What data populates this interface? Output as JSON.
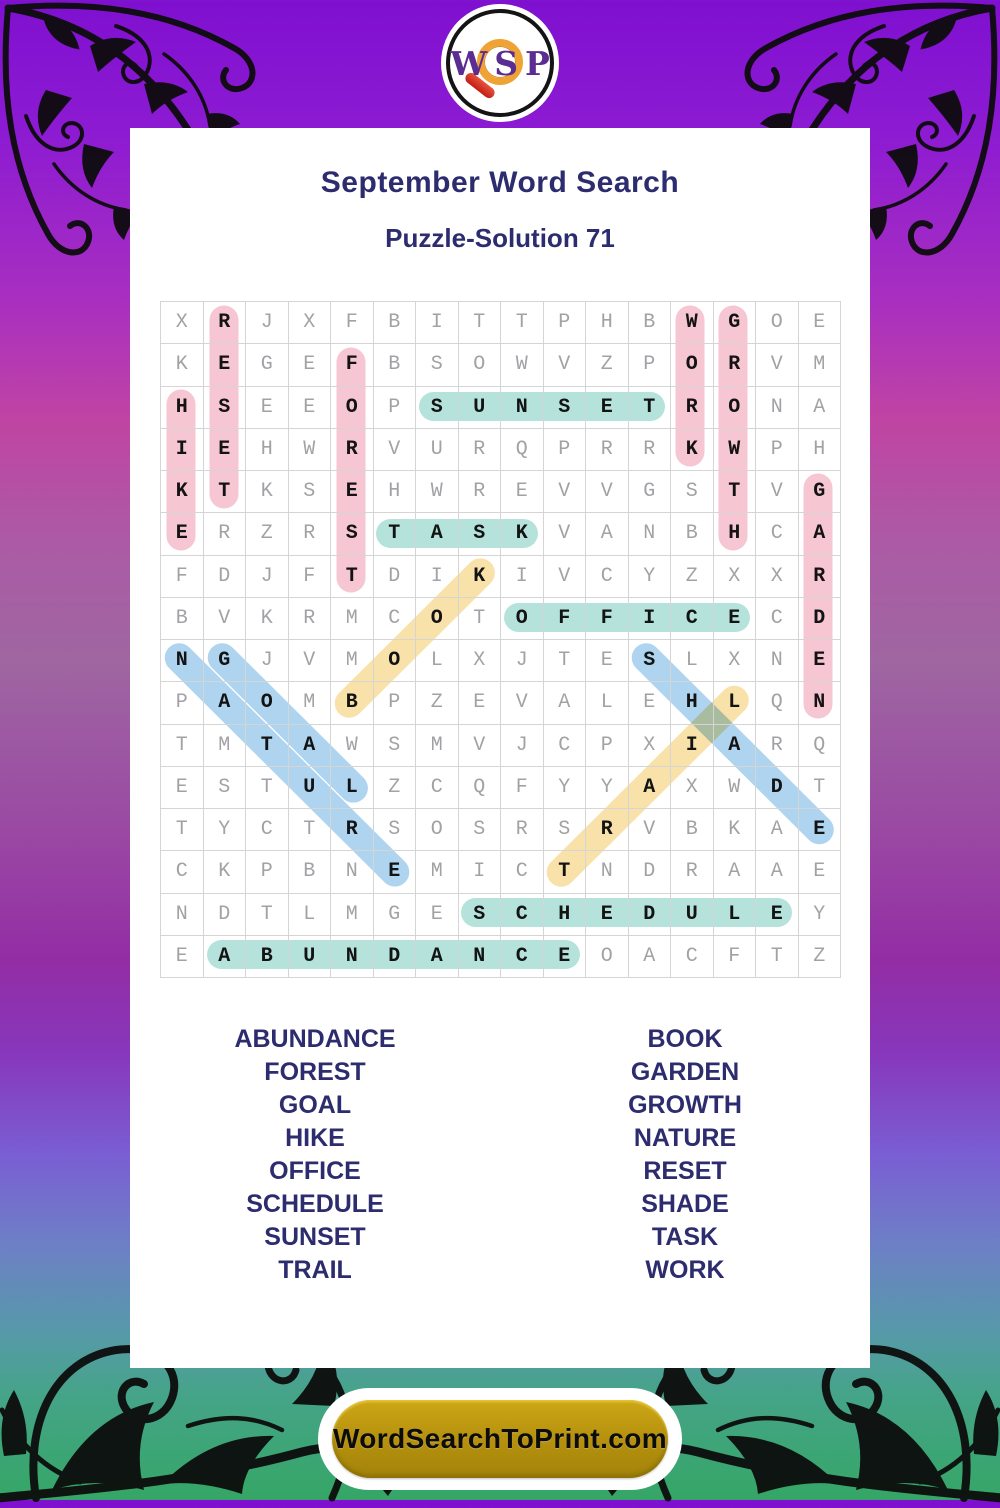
{
  "logo": {
    "letters": "WSP",
    "letter_color": "#5b2c92",
    "lens_ring_color": "#f0a335",
    "handle_color": "#c21d12"
  },
  "header": {
    "title": "September Word Search",
    "subtitle": "Puzzle-Solution 71",
    "text_color": "#2c2c6e"
  },
  "grid": {
    "rows": 16,
    "cols": 16,
    "letters": [
      "XRJXFBITTPHBWGOE",
      "KEGEFBSOWVZPORVM",
      "HSEEOPSUNSETRONA",
      "IEHWRVURQPRRKWPH",
      "KTKSEHWREVVGSTVG",
      "ERZRSTASKVANBHCA",
      "FDJFTDIKIVCYZXXR",
      "BVKRMCOTOFFICECD",
      "NGJVMOLXJTESLXNE",
      "PAOMBPZEVALEHLQN",
      "TMTAWSMVJCPXIARQ",
      "ESTULZCQFYYAXWDT",
      "TYCTRSOSRSRVBKAE",
      "CKPBNEMICTNDRAAE",
      "NDTLMGESCHEDULEY",
      "EABUNDANCEOACFTZ"
    ],
    "highlight_colors": {
      "pink": "#f6c6d2",
      "teal": "#b5e3dc",
      "yellow": "#f8e2a9",
      "blue": "#aed4f0"
    },
    "placements": [
      {
        "word": "RESET",
        "row1": 1,
        "col1": 2,
        "row2": 5,
        "col2": 2,
        "color": "pink"
      },
      {
        "word": "HIKE",
        "row1": 3,
        "col1": 1,
        "row2": 6,
        "col2": 1,
        "color": "pink"
      },
      {
        "word": "FOREST",
        "row1": 2,
        "col1": 5,
        "row2": 7,
        "col2": 5,
        "color": "pink"
      },
      {
        "word": "WORK",
        "row1": 1,
        "col1": 13,
        "row2": 4,
        "col2": 13,
        "color": "pink"
      },
      {
        "word": "GROWTH",
        "row1": 1,
        "col1": 14,
        "row2": 6,
        "col2": 14,
        "color": "pink"
      },
      {
        "word": "GARDEN",
        "row1": 5,
        "col1": 16,
        "row2": 10,
        "col2": 16,
        "color": "pink"
      },
      {
        "word": "SUNSET",
        "row1": 3,
        "col1": 7,
        "row2": 3,
        "col2": 12,
        "color": "teal"
      },
      {
        "word": "TASK",
        "row1": 6,
        "col1": 6,
        "row2": 6,
        "col2": 9,
        "color": "teal"
      },
      {
        "word": "OFFICE",
        "row1": 8,
        "col1": 9,
        "row2": 8,
        "col2": 14,
        "color": "teal"
      },
      {
        "word": "SCHEDULE",
        "row1": 15,
        "col1": 8,
        "row2": 15,
        "col2": 15,
        "color": "teal"
      },
      {
        "word": "ABUNDANCE",
        "row1": 16,
        "col1": 2,
        "row2": 16,
        "col2": 10,
        "color": "teal"
      },
      {
        "word": "BOOK",
        "row1": 10,
        "col1": 5,
        "row2": 7,
        "col2": 8,
        "color": "yellow"
      },
      {
        "word": "TRAIL",
        "row1": 14,
        "col1": 10,
        "row2": 10,
        "col2": 14,
        "color": "yellow"
      },
      {
        "word": "NATURE",
        "row1": 9,
        "col1": 1,
        "row2": 14,
        "col2": 6,
        "color": "blue"
      },
      {
        "word": "GOAL",
        "row1": 9,
        "col1": 2,
        "row2": 12,
        "col2": 5,
        "color": "blue"
      },
      {
        "word": "SHADE",
        "row1": 9,
        "col1": 12,
        "row2": 13,
        "col2": 16,
        "color": "blue"
      }
    ]
  },
  "word_list": {
    "left": [
      "ABUNDANCE",
      "FOREST",
      "GOAL",
      "HIKE",
      "OFFICE",
      "SCHEDULE",
      "SUNSET",
      "TRAIL"
    ],
    "right": [
      "BOOK",
      "GARDEN",
      "GROWTH",
      "NATURE",
      "RESET",
      "SHADE",
      "TASK",
      "WORK"
    ]
  },
  "footer": {
    "button_label": "WordSearchToPrint.com",
    "button_color": "#b8930e"
  }
}
